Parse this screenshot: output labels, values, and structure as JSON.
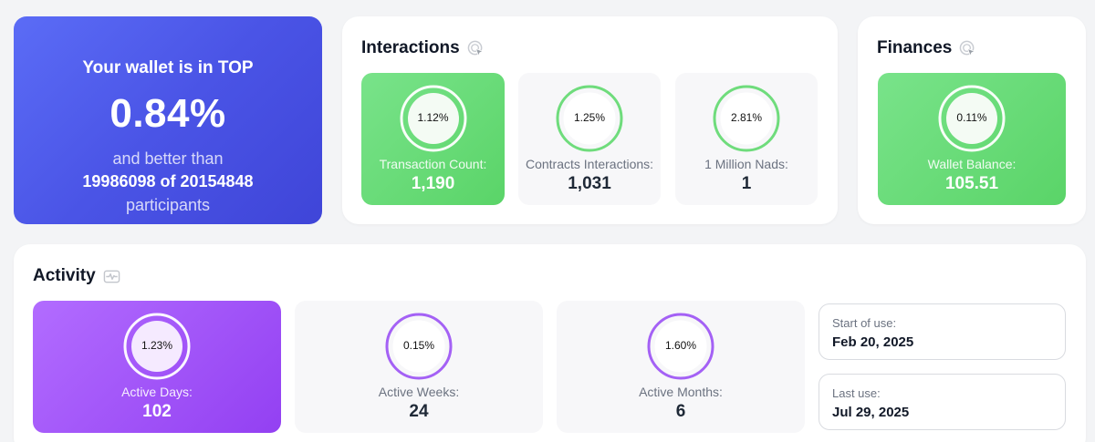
{
  "rank": {
    "line1": "Your wallet is in TOP",
    "percent": "0.84%",
    "line3": "and better than",
    "line4": "19986098 of 20154848",
    "line5": "participants"
  },
  "interactions": {
    "title": "Interactions",
    "icon": "pointer-click-icon",
    "tiles": [
      {
        "ring_label": "1.12%",
        "label": "Transaction Count:",
        "value": "1,190",
        "style": "green"
      },
      {
        "ring_label": "1.25%",
        "label": "Contracts Interactions:",
        "value": "1,031",
        "style": "grey"
      },
      {
        "ring_label": "2.81%",
        "label": "1 Million Nads:",
        "value": "1",
        "style": "grey"
      }
    ]
  },
  "finances": {
    "title": "Finances",
    "icon": "pointer-click-icon",
    "tiles": [
      {
        "ring_label": "0.11%",
        "label": "Wallet Balance:",
        "value": "105.51",
        "style": "green"
      }
    ]
  },
  "activity": {
    "title": "Activity",
    "icon": "activity-pulse-icon",
    "tiles": [
      {
        "ring_label": "1.23%",
        "label": "Active Days:",
        "value": "102",
        "style": "purple"
      },
      {
        "ring_label": "0.15%",
        "label": "Active Weeks:",
        "value": "24",
        "style": "grey"
      },
      {
        "ring_label": "1.60%",
        "label": "Active Months:",
        "value": "6",
        "style": "grey"
      }
    ],
    "start": {
      "label": "Start of use:",
      "value": "Feb 20, 2025"
    },
    "last": {
      "label": "Last use:",
      "value": "Jul 29, 2025"
    }
  },
  "colors": {
    "accent_blue": "#4a54e6",
    "green": "#5ad468",
    "green_ring": "#6fdc7c",
    "purple": "#9340f2",
    "purple_ring": "#a461f5"
  }
}
